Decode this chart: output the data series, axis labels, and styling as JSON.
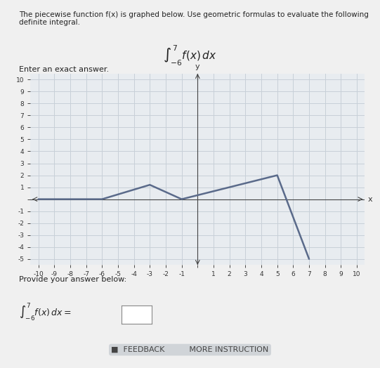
{
  "title_text": "The piecewise function f(x) is graphed below. Use geometric formulas to evaluate the following definite integral.",
  "integral_text": "∫_{-6}^{7} f(x) dx",
  "graph_points": [
    [
      -10,
      0
    ],
    [
      -6,
      0
    ],
    [
      -3,
      1.2
    ],
    [
      -1,
      0
    ],
    [
      5,
      2
    ],
    [
      7,
      -5
    ]
  ],
  "xlim": [
    -10.5,
    10.5
  ],
  "ylim": [
    -5.5,
    10.5
  ],
  "xticks": [
    -10,
    -9,
    -8,
    -7,
    -6,
    -5,
    -4,
    -3,
    -2,
    -1,
    0,
    1,
    2,
    3,
    4,
    5,
    6,
    7,
    8,
    9,
    10
  ],
  "yticks": [
    -5,
    -4,
    -3,
    -2,
    -1,
    0,
    1,
    2,
    3,
    4,
    5,
    6,
    7,
    8,
    9,
    10
  ],
  "line_color": "#5a6a8a",
  "line_width": 1.8,
  "grid_color": "#c8d0d8",
  "bg_color": "#e8ecf0",
  "text_color": "#222222",
  "answer_label": "∫_{-6}^{7} f(x) dx =",
  "provide_label": "Provide your answer below:",
  "enter_label": "Enter an exact answer.",
  "feedback_label": "FEEDBACK",
  "more_label": "MORE INSTRUCTION"
}
